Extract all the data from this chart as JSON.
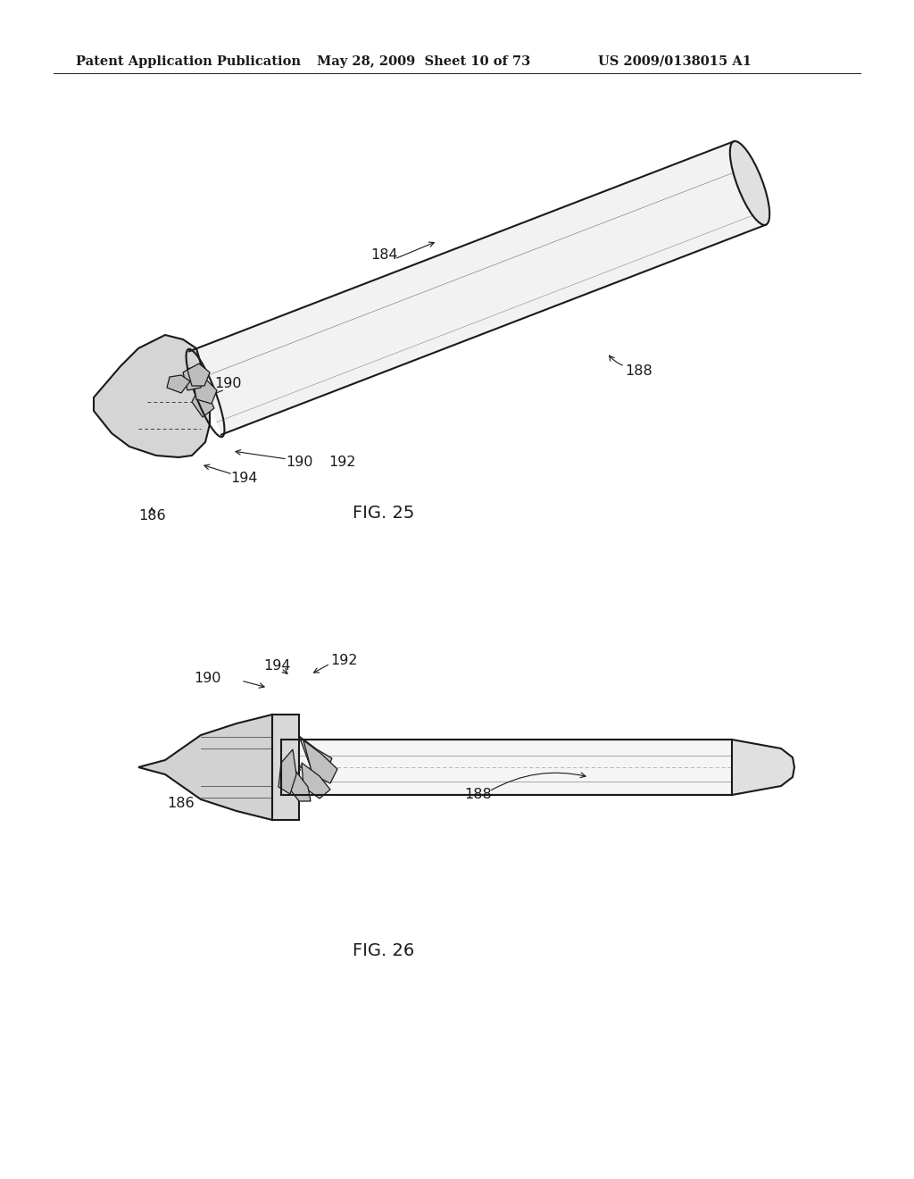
{
  "title_left": "Patent Application Publication",
  "title_mid": "May 28, 2009  Sheet 10 of 73",
  "title_right": "US 2009/0138015 A1",
  "fig25_label": "FIG. 25",
  "fig26_label": "FIG. 26",
  "background": "#ffffff",
  "line_color": "#1a1a1a",
  "label_fontsize": 11.5,
  "header_fontsize": 10.5,
  "fig_label_fontsize": 14
}
